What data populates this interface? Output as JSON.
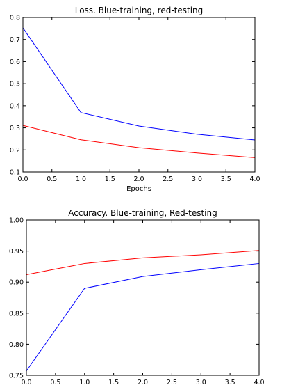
{
  "chart_data": [
    {
      "type": "line",
      "title": "Loss. Blue-training, red-testing",
      "xlabel": "Epochs",
      "ylabel": "",
      "xlim": [
        0,
        4
      ],
      "ylim": [
        0.1,
        0.8
      ],
      "xticks": [
        "0.0",
        "0.5",
        "1.0",
        "1.5",
        "2.0",
        "2.5",
        "3.0",
        "3.5",
        "4.0"
      ],
      "yticks": [
        "0.1",
        "0.2",
        "0.3",
        "0.4",
        "0.5",
        "0.6",
        "0.7",
        "0.8"
      ],
      "grid": false,
      "series": [
        {
          "color": "#0000ff",
          "x": [
            0,
            1,
            2,
            3,
            4
          ],
          "y": [
            0.753,
            0.369,
            0.308,
            0.271,
            0.245
          ]
        },
        {
          "color": "#ff0000",
          "x": [
            0,
            1,
            2,
            3,
            4
          ],
          "y": [
            0.311,
            0.246,
            0.21,
            0.186,
            0.165
          ]
        }
      ]
    },
    {
      "type": "line",
      "title": "Accuracy. Blue-training, Red-testing",
      "xlabel": "",
      "ylabel": "",
      "xlim": [
        0,
        4
      ],
      "ylim": [
        0.75,
        1.0
      ],
      "xticks": [
        "0.0",
        "0.5",
        "1.0",
        "1.5",
        "2.0",
        "2.5",
        "3.0",
        "3.5",
        "4.0"
      ],
      "yticks": [
        "0.75",
        "0.80",
        "0.85",
        "0.90",
        "0.95",
        "1.00"
      ],
      "grid": false,
      "series": [
        {
          "color": "#0000ff",
          "x": [
            0,
            1,
            2,
            3,
            4
          ],
          "y": [
            0.757,
            0.89,
            0.909,
            0.92,
            0.93
          ]
        },
        {
          "color": "#ff0000",
          "x": [
            0,
            1,
            2,
            3,
            4
          ],
          "y": [
            0.912,
            0.93,
            0.939,
            0.944,
            0.951
          ]
        }
      ]
    }
  ]
}
